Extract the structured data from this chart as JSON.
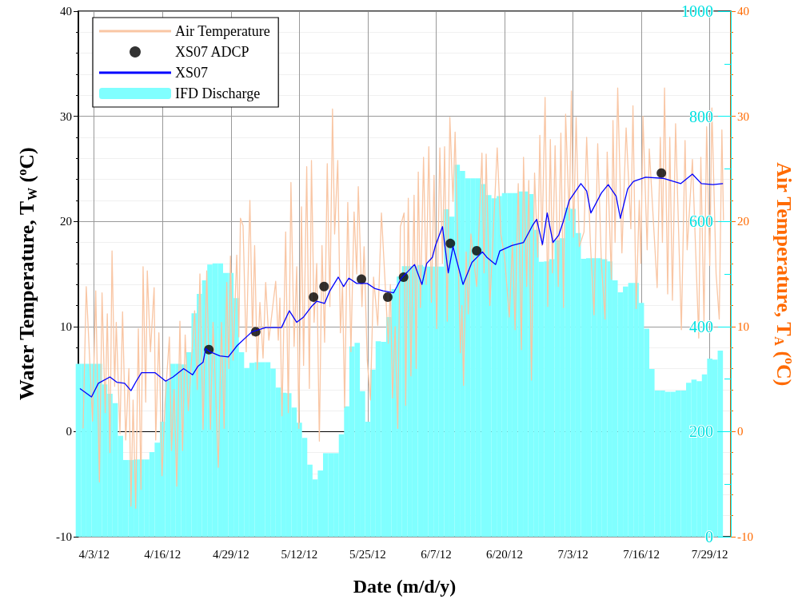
{
  "chart_data": {
    "type": "line",
    "xlabel": "Date (m/d/y)",
    "ylabel": "Water Temperature, T$_{W}$ ($^{o}$C)",
    "y2label": "Air Temperature, T$_{A}$ ($^{o}$C)",
    "xlim": [
      "--03-31",
      "--08-02"
    ],
    "xticks": [
      {
        "value": "--04-03",
        "label": "4/3/12"
      },
      {
        "value": "--04-16",
        "label": "4/16/12"
      },
      {
        "value": "--04-29",
        "label": "4/29/12"
      },
      {
        "value": "--05-12",
        "label": "5/12/12"
      },
      {
        "value": "--05-25",
        "label": "5/25/12"
      },
      {
        "value": "--06-07",
        "label": "6/7/12"
      },
      {
        "value": "--06-20",
        "label": "6/20/12"
      },
      {
        "value": "--07-03",
        "label": "7/3/12"
      },
      {
        "value": "--07-16",
        "label": "7/16/12"
      },
      {
        "value": "--07-29",
        "label": "7/29/12"
      }
    ],
    "ylim": [
      -10,
      40
    ],
    "yticks": [
      -10,
      0,
      10,
      20,
      30,
      40
    ],
    "y2lim": [
      -10,
      40
    ],
    "y2ticks": [
      -10,
      0,
      10,
      20,
      30,
      40
    ],
    "y3lim": [
      0,
      1000
    ],
    "y3ticks": [
      0,
      200,
      400,
      600,
      800,
      1000
    ],
    "grid": true,
    "legend": "top left",
    "series": [
      {
        "name": "Air Temperature",
        "type": "line",
        "axis": "y2",
        "marker": "none",
        "color": "#f9c6a4",
        "x": [
          "--03-31T21:36",
          "--04-01T12:00",
          "--04-02T16:48",
          "--04-03T07:12",
          "--04-04T00:00",
          "--04-04T12:00",
          "--04-05T02:24",
          "--04-05T12:00",
          "--04-06T00:00",
          "--04-06T09:36",
          "--04-06T21:36",
          "--04-07T04:48",
          "--04-07T21:36",
          "--04-08T09:36",
          "--04-09T00:00",
          "--04-09T14:24",
          "--04-10T00:00",
          "--04-10T09:36",
          "--04-10T21:36",
          "--04-11T09:36",
          "--04-11T21:36",
          "--04-12T07:12",
          "--04-12T19:12",
          "--04-13T02:24",
          "--04-13T16:48",
          "--04-14T09:36",
          "--04-14T16:48",
          "--04-15T07:12",
          "--04-15T21:36",
          "--04-16T12:00",
          "--04-17T07:12",
          "--04-17T16:48",
          "--04-18T04:48",
          "--04-18T16:48",
          "--04-19T07:12",
          "--04-19T19:12",
          "--04-20T07:12",
          "--04-20T21:36",
          "--04-22T02:24",
          "--04-22T14:24",
          "--04-23T02:24",
          "--04-23T16:48",
          "--04-24T09:36",
          "--04-25T02:24",
          "--04-25T14:24",
          "--04-26T14:24",
          "--04-27T04:48",
          "--04-27T16:48",
          "--04-28T04:48",
          "--04-28T14:24",
          "--04-28T21:36",
          "--04-29T09:36",
          "--04-30T02:24",
          "--04-30T12:00",
          "--04-30T19:12",
          "--05-01T07:12",
          "--05-01T21:36",
          "--05-02T14:24",
          "--05-03T02:24",
          "--05-03T12:00",
          "--05-04T00:00",
          "--05-04T12:00",
          "--05-05T02:24",
          "--05-05T14:24",
          "--05-06T04:48",
          "--05-07T12:00",
          "--05-08T00:00",
          "--05-08T07:12",
          "--05-08T16:48",
          "--05-09T09:36",
          "--05-09T21:36",
          "--05-10T09:36",
          "--05-11T00:00",
          "--05-11T12:00",
          "--05-11T21:36",
          "--05-12T09:36",
          "--05-12T19:12",
          "--05-13T09:36",
          "--05-13T21:36",
          "--05-14T07:12",
          "--05-14T19:12",
          "--05-15T07:12",
          "--05-15T19:12",
          "--05-16T07:12",
          "--05-16T19:12",
          "--05-17T07:12",
          "--05-17T19:12",
          "--05-18T07:12",
          "--05-18T16:48",
          "--05-19T07:12",
          "--05-19T19:12",
          "--05-20T04:48",
          "--05-20T14:24",
          "--05-21T04:48",
          "--05-21T19:12",
          "--05-22T09:36",
          "--05-22T21:36",
          "--05-23T04:48",
          "--05-23T21:36",
          "--05-24T07:12",
          "--05-24T21:36",
          "--05-25T12:00",
          "--05-26T02:24",
          "--05-26T21:36",
          "--05-27T14:24",
          "--05-28T21:36",
          "--05-29T07:12",
          "--05-29T16:48",
          "--05-30T04:48",
          "--05-30T16:48",
          "--05-31T04:48",
          "--05-31T21:36",
          "--06-01T04:48",
          "--06-01T16:48",
          "--06-02T04:48",
          "--06-02T19:12",
          "--06-03T04:48",
          "--06-03T14:24",
          "--06-04T00:00",
          "--06-04T14:24",
          "--06-05T02:24",
          "--06-05T14:24",
          "--06-06T02:24",
          "--06-06T14:24",
          "--06-07T02:24",
          "--06-07T16:48",
          "--06-08T04:48",
          "--06-08T14:24",
          "--06-09T02:24",
          "--06-09T14:24",
          "--06-10T04:48",
          "--06-10T14:24",
          "--06-11T14:24",
          "--06-11T21:36",
          "--06-12T04:48",
          "--06-12T16:48",
          "--06-13T02:24",
          "--06-13T14:24",
          "--06-14T16:48",
          "--06-15T16:48",
          "--06-16T02:24",
          "--06-16T12:00",
          "--06-17T04:48",
          "--06-18T14:24",
          "--06-19T07:12",
          "--06-20T00:00",
          "--06-20T21:36",
          "--06-21T12:00",
          "--06-22T00:00",
          "--06-22T14:24",
          "--06-23T04:48",
          "--06-23T14:24",
          "--06-24T04:48",
          "--06-24T14:24",
          "--06-25T02:24",
          "--06-25T16:48",
          "--06-26T07:12",
          "--06-26T16:48",
          "--06-27T02:24",
          "--06-27T16:48",
          "--06-28T04:48",
          "--06-28T16:48",
          "--06-29T02:24",
          "--06-29T14:24",
          "--06-30T04:48",
          "--06-30T16:48",
          "--07-01T04:48",
          "--07-01T14:24",
          "--07-02T07:12",
          "--07-02T16:48",
          "--07-03T02:24",
          "--07-03T14:24",
          "--07-04T04:48",
          "--07-05T02:24",
          "--07-05T14:24",
          "--07-06T07:12",
          "--07-07T00:00",
          "--07-07T16:48",
          "--07-08T09:36",
          "--07-09T02:24",
          "--07-09T12:00",
          "--07-10T07:12",
          "--07-10T14:24",
          "--07-11T00:00",
          "--07-11T12:00",
          "--07-12T07:12",
          "--07-13T02:24",
          "--07-14T00:00",
          "--07-14T09:36",
          "--07-15T00:00",
          "--07-15T14:24",
          "--07-15T21:36",
          "--07-16T07:12",
          "--07-17T02:24",
          "--07-17T12:00",
          "--07-19T00:00",
          "--07-19T14:24",
          "--07-20T00:00",
          "--07-20T09:36",
          "--07-21T00:00",
          "--07-21T09:36",
          "--07-21T21:36",
          "--07-22T12:00",
          "--07-23T14:24",
          "--07-24T07:12",
          "--07-24T16:48",
          "--07-25T16:48",
          "--07-26T21:36",
          "--07-27T07:12",
          "--07-27T21:36",
          "--07-28T09:36",
          "--07-29T00:00",
          "--07-29T09:36",
          "--07-30T04:48",
          "--07-30T19:12",
          "--07-31T07:12",
          "--07-31T14:24"
        ],
        "values": [
          0.3,
          13.8,
          1.0,
          13.4,
          -4.8,
          13.2,
          1.8,
          11.2,
          -2.0,
          17.2,
          4.3,
          10.4,
          -0.2,
          11.4,
          -0.8,
          6.0,
          -7.1,
          3.0,
          -7.3,
          9.8,
          -5.5,
          15.7,
          2.8,
          15.3,
          7.6,
          13.7,
          -0.8,
          9.4,
          -4.2,
          3.0,
          9.0,
          -1.8,
          4.0,
          -5.2,
          10.5,
          -1.8,
          9.2,
          2.0,
          11.5,
          4.0,
          15.0,
          0.2,
          15.3,
          0.2,
          10.4,
          -3.4,
          10.4,
          0.3,
          14.2,
          6.0,
          16.7,
          6.8,
          16.8,
          9.0,
          20.3,
          19.6,
          7.6,
          22.0,
          9.1,
          17.7,
          5.9,
          12.3,
          7.0,
          14.2,
          8.7,
          14.3,
          8.7,
          12.7,
          1.5,
          19.0,
          1.8,
          23.7,
          8.1,
          15.7,
          0.3,
          21.4,
          6.3,
          25.2,
          4.1,
          25.8,
          10.4,
          16.0,
          -0.9,
          17.7,
          8.5,
          25.5,
          11.9,
          30.7,
          18.8,
          25.8,
          9.4,
          14.0,
          2.3,
          21.8,
          7.6,
          20.9,
          15.0,
          23.3,
          11.9,
          17.6,
          6.8,
          3.0,
          14.7,
          10.1,
          20.8,
          8.4,
          14.0,
          3.2,
          10.0,
          0.3,
          19.5,
          20.8,
          2.5,
          22.2,
          5.3,
          22.5,
          6.0,
          24.7,
          11.8,
          26.1,
          14.0,
          27.1,
          12.3,
          24.4,
          9.8,
          27.0,
          16.0,
          27.1,
          10.5,
          29.9,
          21.9,
          28.5,
          7.5,
          12.0,
          4.4,
          17.1,
          11.2,
          18.8,
          13.8,
          26.5,
          15.1,
          26.4,
          12.0,
          27.0,
          18.8,
          16.6,
          10.9,
          18.0,
          9.7,
          23.6,
          7.8,
          26.1,
          13.8,
          23.9,
          4.9,
          24.6,
          16.6,
          28.2,
          17.7,
          31.8,
          11.9,
          27.8,
          15.1,
          27.2,
          13.8,
          28.4,
          11.8,
          30.2,
          20.1,
          32.4,
          18.5,
          29.9,
          17.6,
          19.0,
          28.0,
          18.0,
          11.1,
          27.4,
          16.0,
          10.7,
          26.6,
          14.5,
          29.6,
          18.0,
          32.7,
          17.0,
          28.9,
          19.3,
          31.0,
          11.7,
          22.0,
          16.0,
          30.0,
          17.3,
          26.9,
          13.7,
          28.0,
          18.0,
          32.7,
          13.1,
          28.0,
          12.5,
          29.3,
          9.7,
          27.7,
          17.3,
          25.9,
          8.9,
          26.1,
          10.4,
          29.0,
          15.8,
          30.8,
          15.0,
          10.7,
          28.7,
          20.1
        ]
      },
      {
        "name": "XS07 ADCP",
        "type": "scatter",
        "marker": "circle",
        "color": "#000000",
        "x": [
          "--04-24T19:12",
          "--05-03T16:48",
          "--05-14T16:48",
          "--05-16T16:48",
          "--05-23T19:12",
          "--05-28T19:12",
          "--05-31T19:12",
          "--06-09T16:48",
          "--06-14T16:48",
          "--07-19T19:12"
        ],
        "values": [
          7.8,
          9.5,
          12.8,
          13.8,
          14.5,
          12.8,
          14.7,
          17.9,
          17.2,
          24.6
        ]
      },
      {
        "name": "XS07",
        "marker": "none",
        "color": "#0000ff",
        "x": [
          "--03-31T07:12",
          "--04-02T12:00",
          "--04-03T19:12",
          "--04-06T00:00",
          "--04-07T07:12",
          "--04-08T19:12",
          "--04-10T00:00",
          "--04-11T00:00",
          "--04-12T00:00",
          "--04-14T14:24",
          "--04-16T14:24",
          "--04-18T00:00",
          "--04-20T00:00",
          "--04-21T16:48",
          "--04-22T16:48",
          "--04-23T16:48",
          "--04-24T04:48",
          "--04-25T00:00",
          "--04-26T21:36",
          "--04-28T12:00",
          "--04-30T04:48",
          "--05-03T00:00",
          "--05-05T14:24",
          "--05-08T14:24",
          "--05-10T02:24",
          "--05-11T12:00",
          "--05-12T19:12",
          "--05-14T07:12",
          "--05-15T07:12",
          "--05-16T19:12",
          "--05-17T19:12",
          "--05-19T09:36",
          "--05-20T09:36",
          "--05-21T09:36",
          "--05-22T21:36",
          "--05-24T21:36",
          "--05-26T09:36",
          "--05-27T21:36",
          "--05-29T21:36",
          "--05-31T09:36",
          "--06-02T21:36",
          "--06-04T07:12",
          "--06-05T04:48",
          "--06-06T07:12",
          "--06-06T19:12",
          "--06-08T04:48",
          "--06-09T07:12",
          "--06-10T04:48",
          "--06-12T02:24",
          "--06-13T19:12",
          "--06-15T19:12",
          "--06-16T14:24",
          "--06-18T07:12",
          "--06-19T02:24",
          "--06-21T09:36",
          "--06-23T14:24",
          "--06-25T07:12",
          "--06-26T02:24",
          "--06-27T04:48",
          "--06-28T02:24",
          "--06-29T04:48",
          "--06-30T07:12",
          "--07-01T02:24",
          "--07-02T07:12",
          "--07-04T12:00",
          "--07-05T14:24",
          "--07-06T09:36",
          "--07-08T09:36",
          "--07-09T16:48",
          "--07-11T04:48",
          "--07-12T00:00",
          "--07-13T09:36",
          "--07-14T12:00",
          "--07-16T19:12",
          "--07-20T02:24",
          "--07-23T12:00",
          "--07-25T16:48",
          "--07-27T09:36",
          "--07-29T14:24",
          "--07-31T12:00"
        ],
        "values": [
          4.1,
          3.3,
          4.6,
          5.2,
          4.7,
          4.6,
          3.9,
          4.8,
          5.6,
          5.6,
          4.8,
          5.2,
          6.0,
          5.4,
          6.2,
          6.6,
          7.9,
          7.6,
          7.2,
          7.1,
          8.2,
          9.5,
          9.9,
          9.9,
          11.5,
          10.4,
          10.9,
          11.9,
          12.4,
          12.2,
          13.4,
          14.7,
          13.8,
          14.6,
          14.1,
          14.1,
          13.6,
          13.4,
          13.2,
          14.6,
          15.9,
          14.0,
          16.0,
          16.6,
          17.6,
          19.5,
          15.1,
          17.6,
          14.0,
          16.1,
          17.1,
          16.6,
          15.9,
          17.2,
          17.7,
          18.0,
          19.6,
          20.2,
          17.8,
          20.8,
          18.0,
          18.7,
          19.9,
          22.0,
          23.6,
          22.9,
          20.8,
          22.7,
          23.5,
          22.4,
          20.3,
          23.1,
          23.8,
          24.2,
          24.1,
          23.6,
          24.5,
          23.6,
          23.5,
          23.6
        ]
      },
      {
        "name": "IFD Discharge",
        "type": "bar",
        "axis": "y3",
        "color": "#80ffff",
        "x": [
          "--03-31",
          "--04-01",
          "--04-02",
          "--04-03",
          "--04-04",
          "--04-05",
          "--04-06",
          "--04-07",
          "--04-08",
          "--04-09",
          "--04-10",
          "--04-11",
          "--04-12",
          "--04-13",
          "--04-14",
          "--04-15",
          "--04-16",
          "--04-17",
          "--04-18",
          "--04-19",
          "--04-20",
          "--04-21",
          "--04-22",
          "--04-23",
          "--04-24",
          "--04-25",
          "--04-26",
          "--04-27",
          "--04-28",
          "--04-29",
          "--04-30",
          "--05-01",
          "--05-02",
          "--05-03",
          "--05-04",
          "--05-05",
          "--05-06",
          "--05-07",
          "--05-08",
          "--05-09",
          "--05-10",
          "--05-11",
          "--05-12",
          "--05-13",
          "--05-14",
          "--05-15",
          "--05-16",
          "--05-17",
          "--05-18",
          "--05-19",
          "--05-20",
          "--05-21",
          "--05-22",
          "--05-23",
          "--05-24",
          "--05-25",
          "--05-26",
          "--05-27",
          "--05-28",
          "--05-29",
          "--05-30",
          "--05-31",
          "--06-01",
          "--06-02",
          "--06-03",
          "--06-04",
          "--06-05",
          "--06-06",
          "--06-07",
          "--06-08",
          "--06-09",
          "--06-10",
          "--06-11",
          "--06-12",
          "--06-13",
          "--06-14",
          "--06-15",
          "--06-16",
          "--06-17",
          "--06-18",
          "--06-19",
          "--06-20",
          "--06-21",
          "--06-22",
          "--06-23",
          "--06-24",
          "--06-25",
          "--06-26",
          "--06-27",
          "--06-28",
          "--06-29",
          "--06-30",
          "--07-01",
          "--07-02",
          "--07-03",
          "--07-04",
          "--07-05",
          "--07-06",
          "--07-07",
          "--07-08",
          "--07-09",
          "--07-10",
          "--07-11",
          "--07-12",
          "--07-13",
          "--07-14",
          "--07-15",
          "--07-16",
          "--07-17",
          "--07-18",
          "--07-19",
          "--07-20",
          "--07-21",
          "--07-22",
          "--07-23",
          "--07-24",
          "--07-25",
          "--07-26",
          "--07-27",
          "--07-28",
          "--07-29",
          "--07-30",
          "--07-31"
        ],
        "values": [
          329,
          329,
          329,
          329,
          329,
          290,
          272,
          254,
          192,
          146,
          146,
          147,
          147,
          147,
          161,
          179,
          219,
          297,
          329,
          329,
          328,
          351,
          425,
          462,
          488,
          518,
          520,
          520,
          502,
          502,
          454,
          351,
          321,
          331,
          332,
          332,
          332,
          320,
          284,
          274,
          273,
          246,
          217,
          188,
          137,
          109,
          126,
          159,
          159,
          159,
          195,
          248,
          362,
          369,
          277,
          219,
          318,
          372,
          371,
          418,
          471,
          495,
          515,
          515,
          515,
          517,
          514,
          514,
          514,
          514,
          623,
          609,
          708,
          696,
          682,
          682,
          682,
          671,
          650,
          644,
          648,
          654,
          654,
          654,
          657,
          657,
          652,
          584,
          523,
          524,
          528,
          564,
          568,
          626,
          624,
          578,
          529,
          530,
          530,
          530,
          528,
          524,
          488,
          465,
          476,
          483,
          483,
          445,
          396,
          319,
          278,
          278,
          276,
          276,
          278,
          278,
          293,
          299,
          296,
          309,
          339,
          337,
          354
        ]
      }
    ]
  }
}
